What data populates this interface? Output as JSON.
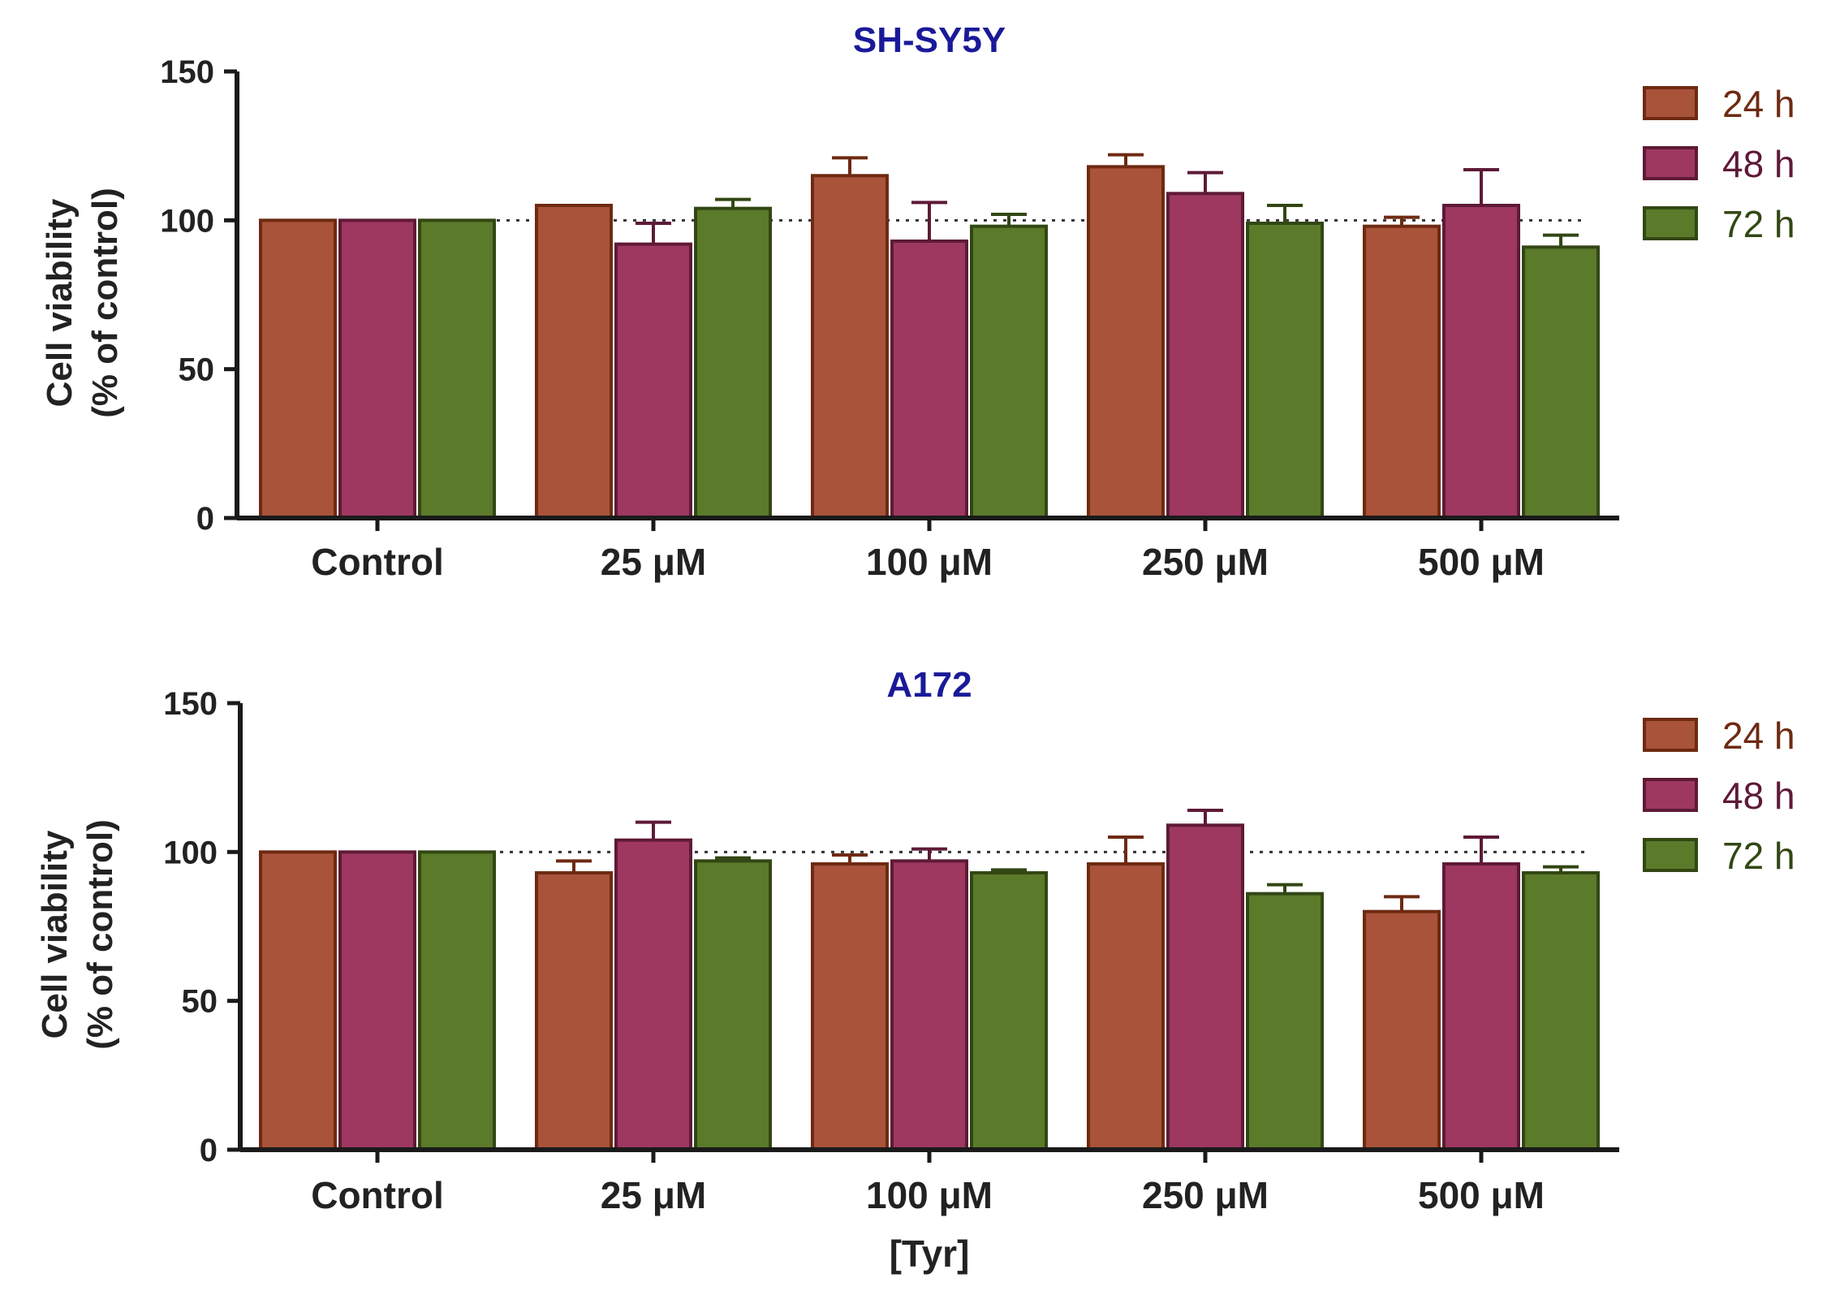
{
  "chart_data": [
    {
      "type": "bar",
      "title": "SH-SY5Y",
      "ylabel": "Cell viability",
      "ylabel2": "(% of control)",
      "xlabel": "",
      "ylim": [
        0,
        150
      ],
      "yticks": [
        0,
        50,
        100,
        150
      ],
      "reference_line": 100,
      "categories": [
        "Control",
        "25 μM",
        "100 μM",
        "250 μM",
        "500 μM"
      ],
      "series": [
        {
          "name": "24 h",
          "color": "#a9533a",
          "edge": "#6e2a12",
          "values": [
            100,
            105,
            115,
            118,
            98
          ],
          "errors": [
            0,
            0,
            6,
            4,
            3
          ]
        },
        {
          "name": "48 h",
          "color": "#9e3860",
          "edge": "#5e1a36",
          "values": [
            100,
            92,
            93,
            109,
            105
          ],
          "errors": [
            0,
            7,
            13,
            7,
            12
          ]
        },
        {
          "name": "72 h",
          "color": "#5b7a2a",
          "edge": "#324714",
          "values": [
            100,
            104,
            98,
            99,
            91
          ],
          "errors": [
            0,
            3,
            4,
            6,
            4
          ]
        }
      ]
    },
    {
      "type": "bar",
      "title": "A172",
      "ylabel": "Cell viability",
      "ylabel2": "(% of control)",
      "xlabel": "[Tyr]",
      "ylim": [
        0,
        150
      ],
      "yticks": [
        0,
        50,
        100,
        150
      ],
      "reference_line": 100,
      "categories": [
        "Control",
        "25 μM",
        "100 μM",
        "250 μM",
        "500 μM"
      ],
      "series": [
        {
          "name": "24 h",
          "color": "#a9533a",
          "edge": "#6e2a12",
          "values": [
            100,
            93,
            96,
            96,
            80
          ],
          "errors": [
            0,
            4,
            3,
            9,
            5
          ]
        },
        {
          "name": "48 h",
          "color": "#9e3860",
          "edge": "#5e1a36",
          "values": [
            100,
            104,
            97,
            109,
            96
          ],
          "errors": [
            0,
            6,
            4,
            5,
            9
          ]
        },
        {
          "name": "72 h",
          "color": "#5b7a2a",
          "edge": "#324714",
          "values": [
            100,
            97,
            93,
            86,
            93
          ],
          "errors": [
            0,
            1,
            1,
            3,
            2
          ]
        }
      ]
    }
  ]
}
